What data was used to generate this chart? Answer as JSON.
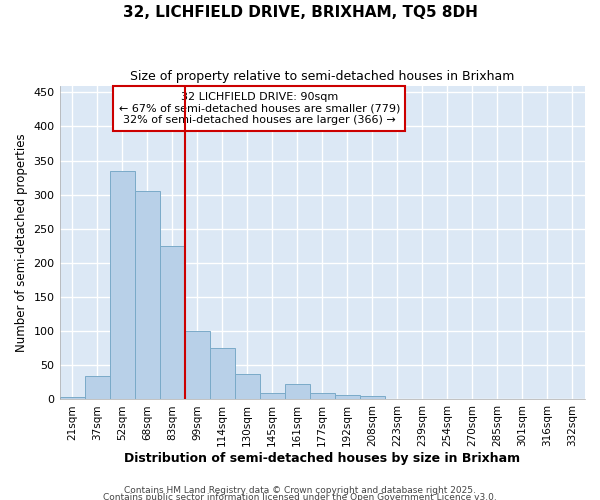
{
  "title1": "32, LICHFIELD DRIVE, BRIXHAM, TQ5 8DH",
  "title2": "Size of property relative to semi-detached houses in Brixham",
  "xlabel": "Distribution of semi-detached houses by size in Brixham",
  "ylabel": "Number of semi-detached properties",
  "bar_labels": [
    "21sqm",
    "37sqm",
    "52sqm",
    "68sqm",
    "83sqm",
    "99sqm",
    "114sqm",
    "130sqm",
    "145sqm",
    "161sqm",
    "177sqm",
    "192sqm",
    "208sqm",
    "223sqm",
    "239sqm",
    "254sqm",
    "270sqm",
    "285sqm",
    "301sqm",
    "316sqm",
    "332sqm"
  ],
  "bar_values": [
    4,
    35,
    335,
    305,
    225,
    100,
    75,
    37,
    10,
    22,
    10,
    7,
    5,
    0,
    0,
    0,
    0,
    0,
    0,
    0,
    0
  ],
  "bar_color": "#b8d0e8",
  "bar_edgecolor": "#7aaac8",
  "ylim": [
    0,
    460
  ],
  "yticks": [
    0,
    50,
    100,
    150,
    200,
    250,
    300,
    350,
    400,
    450
  ],
  "vline_x": 4.5,
  "vline_color": "#cc0000",
  "annotation_title": "32 LICHFIELD DRIVE: 90sqm",
  "annotation_line1": "← 67% of semi-detached houses are smaller (779)",
  "annotation_line2": "32% of semi-detached houses are larger (366) →",
  "annotation_box_color": "#cc0000",
  "plot_bg_color": "#dce8f5",
  "fig_bg_color": "#ffffff",
  "footer1": "Contains HM Land Registry data © Crown copyright and database right 2025.",
  "footer2": "Contains public sector information licensed under the Open Government Licence v3.0."
}
